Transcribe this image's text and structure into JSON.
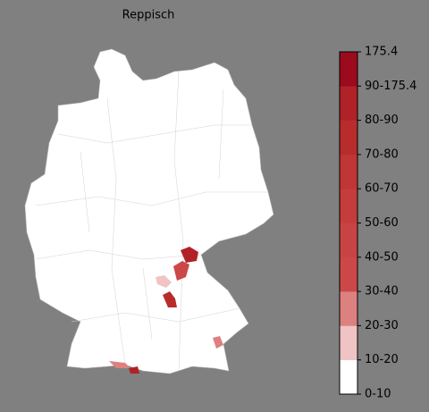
{
  "title": "Reppisch",
  "legend": {
    "ticks": [
      "0-10",
      "10-20",
      "20-30",
      "30-40",
      "40-50",
      "50-60",
      "60-70",
      "70-80",
      "80-90",
      "90-175.4",
      "175.4"
    ],
    "colors": [
      "#ffffff",
      "#f0c4c4",
      "#dc8080",
      "#cc4848",
      "#c84444",
      "#c43c3c",
      "#c03636",
      "#b82c2c",
      "#b02228",
      "#9c0a1e"
    ]
  }
}
